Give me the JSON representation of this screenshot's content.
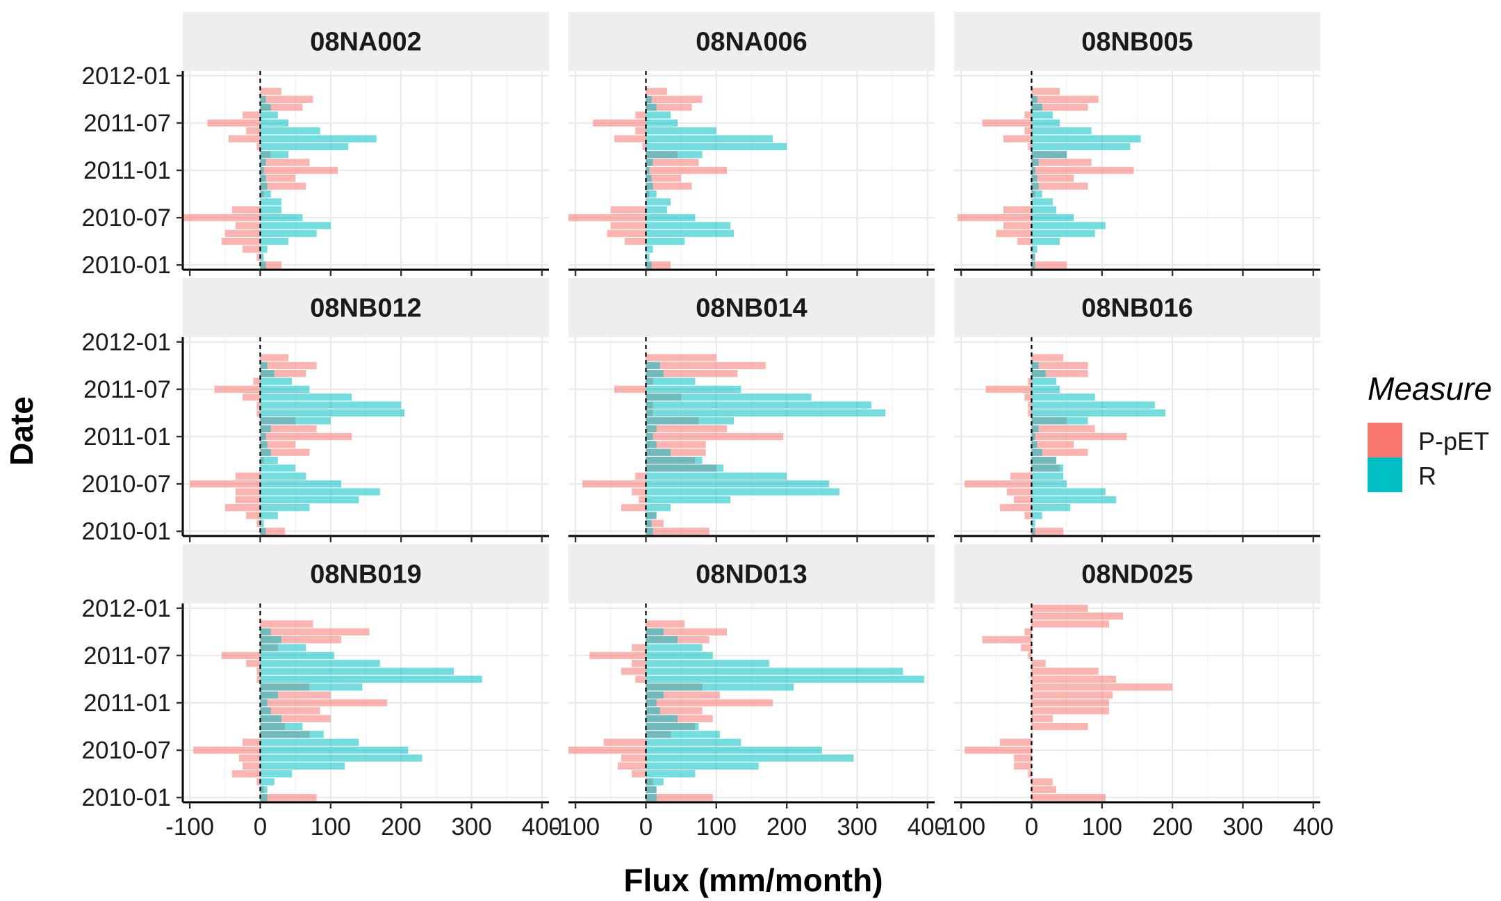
{
  "chart_data": {
    "type": "bar",
    "orientation": "horizontal",
    "xlabel": "Flux (mm/month)",
    "ylabel": "Date",
    "xlim": [
      -110,
      410
    ],
    "x_ticks": [
      -100,
      0,
      100,
      200,
      300,
      400
    ],
    "x_tick_labels": [
      "-100",
      "0",
      "100",
      "200",
      "300",
      "400"
    ],
    "y_ticks": [
      "2010-01",
      "2010-07",
      "2011-01",
      "2011-07",
      "2012-01"
    ],
    "y_tick_labels": [
      "2010-01",
      "2010-07",
      "2011-01",
      "2011-07",
      "2012-01"
    ],
    "months": [
      "2010-01",
      "2010-02",
      "2010-03",
      "2010-04",
      "2010-05",
      "2010-06",
      "2010-07",
      "2010-08",
      "2010-09",
      "2010-10",
      "2010-11",
      "2010-12",
      "2011-01",
      "2011-02",
      "2011-03",
      "2011-04",
      "2011-05",
      "2011-06",
      "2011-07",
      "2011-08",
      "2011-09",
      "2011-10",
      "2011-11",
      "2011-12",
      "2012-01"
    ],
    "grid": true,
    "reference_line": {
      "x": 0,
      "style": "dashed"
    },
    "legend": {
      "title": "Measure",
      "position": "right",
      "items": [
        {
          "label": "P-pET",
          "color": "#F8766D"
        },
        {
          "label": "R",
          "color": "#00BFC4"
        }
      ]
    },
    "panels": [
      {
        "title": "08NA002",
        "series": [
          {
            "name": "P-pET",
            "values": [
              30,
              -5,
              -25,
              -55,
              -50,
              -35,
              -110,
              -40,
              0,
              5,
              65,
              50,
              110,
              70,
              15,
              -5,
              -45,
              -20,
              -75,
              -25,
              60,
              75,
              30,
              null,
              null
            ]
          },
          {
            "name": "R",
            "values": [
              8,
              5,
              10,
              40,
              80,
              100,
              60,
              30,
              30,
              15,
              10,
              8,
              5,
              8,
              40,
              125,
              165,
              85,
              40,
              25,
              15,
              8,
              null,
              null,
              null
            ]
          }
        ]
      },
      {
        "title": "08NA006",
        "series": [
          {
            "name": "P-pET",
            "values": [
              35,
              0,
              0,
              -30,
              -55,
              -50,
              -110,
              -50,
              0,
              5,
              65,
              50,
              115,
              75,
              45,
              -5,
              -45,
              -15,
              -75,
              -15,
              65,
              80,
              30,
              null,
              null
            ]
          },
          {
            "name": "R",
            "values": [
              8,
              5,
              10,
              55,
              125,
              120,
              70,
              30,
              35,
              15,
              10,
              8,
              5,
              10,
              80,
              200,
              180,
              100,
              45,
              35,
              15,
              8,
              null,
              null,
              null
            ]
          }
        ]
      },
      {
        "title": "08NB005",
        "series": [
          {
            "name": "P-pET",
            "values": [
              50,
              5,
              0,
              -20,
              -50,
              -40,
              -105,
              -40,
              0,
              5,
              80,
              60,
              145,
              85,
              50,
              -5,
              -40,
              -10,
              -70,
              -10,
              80,
              95,
              40,
              null,
              null
            ]
          },
          {
            "name": "R",
            "values": [
              5,
              5,
              8,
              40,
              90,
              105,
              60,
              35,
              30,
              15,
              10,
              8,
              5,
              10,
              50,
              140,
              155,
              85,
              40,
              30,
              15,
              8,
              null,
              null,
              null
            ]
          }
        ]
      },
      {
        "title": "08NB012",
        "series": [
          {
            "name": "P-pET",
            "values": [
              35,
              -5,
              -20,
              -50,
              -35,
              -35,
              -100,
              -35,
              0,
              5,
              70,
              50,
              130,
              80,
              50,
              -5,
              -5,
              -25,
              -65,
              -10,
              65,
              80,
              40,
              null,
              null
            ]
          },
          {
            "name": "R",
            "values": [
              8,
              5,
              25,
              70,
              140,
              170,
              115,
              65,
              50,
              25,
              15,
              10,
              8,
              15,
              100,
              205,
              200,
              130,
              70,
              45,
              20,
              10,
              null,
              null,
              null
            ]
          }
        ]
      },
      {
        "title": "08NB014",
        "series": [
          {
            "name": "P-pET",
            "values": [
              90,
              25,
              15,
              -35,
              -10,
              -20,
              -90,
              -15,
              100,
              70,
              85,
              85,
              195,
              115,
              75,
              10,
              10,
              50,
              -45,
              10,
              130,
              170,
              100,
              null,
              null
            ]
          },
          {
            "name": "R",
            "values": [
              10,
              8,
              15,
              35,
              120,
              275,
              260,
              200,
              110,
              80,
              35,
              15,
              10,
              15,
              125,
              340,
              320,
              235,
              135,
              70,
              25,
              20,
              null,
              null,
              null
            ]
          }
        ]
      },
      {
        "title": "08NB016",
        "series": [
          {
            "name": "P-pET",
            "values": [
              45,
              0,
              -10,
              -45,
              -25,
              -35,
              -95,
              -30,
              40,
              35,
              80,
              60,
              135,
              90,
              50,
              -5,
              -5,
              -10,
              -65,
              -5,
              80,
              80,
              45,
              null,
              null
            ]
          },
          {
            "name": "R",
            "values": [
              5,
              5,
              15,
              55,
              120,
              105,
              50,
              45,
              45,
              35,
              15,
              8,
              5,
              10,
              80,
              190,
              175,
              90,
              40,
              35,
              20,
              10,
              null,
              null,
              null
            ]
          }
        ]
      },
      {
        "title": "08NB019",
        "series": [
          {
            "name": "P-pET",
            "values": [
              80,
              5,
              -5,
              -40,
              -25,
              -30,
              -95,
              -25,
              70,
              35,
              100,
              85,
              180,
              100,
              70,
              -5,
              -5,
              -20,
              -55,
              25,
              115,
              155,
              75,
              null,
              null
            ]
          },
          {
            "name": "R",
            "values": [
              10,
              10,
              20,
              45,
              120,
              230,
              210,
              140,
              90,
              60,
              30,
              15,
              10,
              25,
              145,
              315,
              275,
              170,
              105,
              65,
              30,
              15,
              null,
              null,
              null
            ]
          }
        ]
      },
      {
        "title": "08ND013",
        "series": [
          {
            "name": "P-pET",
            "values": [
              95,
              15,
              10,
              -20,
              -40,
              -35,
              -110,
              -60,
              35,
              70,
              95,
              80,
              180,
              105,
              80,
              -15,
              -35,
              -20,
              -80,
              -20,
              90,
              115,
              55,
              null,
              null
            ]
          },
          {
            "name": "R",
            "values": [
              15,
              15,
              25,
              70,
              160,
              295,
              250,
              135,
              105,
              75,
              45,
              20,
              15,
              25,
              210,
              395,
              365,
              175,
              95,
              80,
              45,
              25,
              null,
              null,
              null
            ]
          }
        ]
      },
      {
        "title": "08ND025",
        "series": [
          {
            "name": "P-pET",
            "values": [
              105,
              35,
              30,
              -5,
              -25,
              -25,
              -95,
              -45,
              0,
              80,
              30,
              110,
              110,
              115,
              200,
              120,
              95,
              20,
              -5,
              -15,
              -70,
              -10,
              110,
              130,
              80
            ]
          },
          {
            "name": "R",
            "values": []
          }
        ]
      }
    ]
  }
}
